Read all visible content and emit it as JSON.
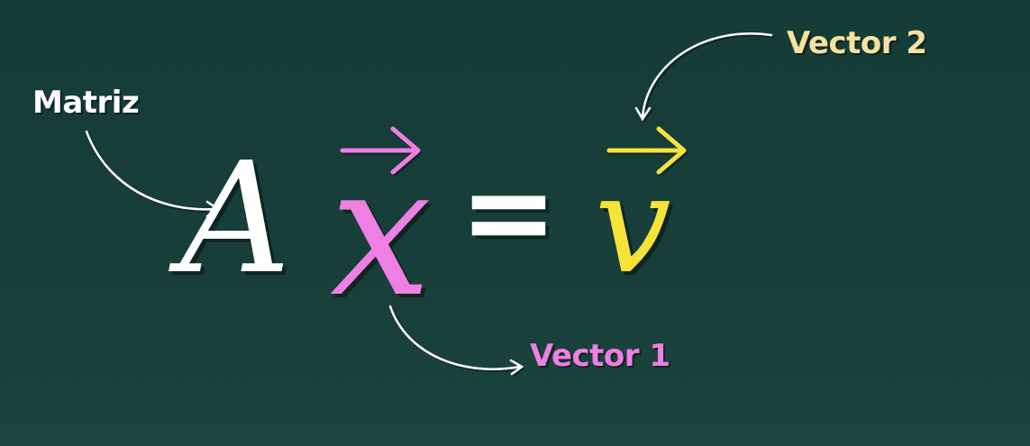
{
  "labels": {
    "matrix": "Matriz",
    "vector1": "Vector 1",
    "vector2": "Vector 2"
  },
  "equation": {
    "matrix_symbol": "A",
    "vector1_symbol": "x",
    "equals": "=",
    "vector2_symbol": "v"
  },
  "colors": {
    "background": "#173d39",
    "matrix": "#ffffff",
    "vector1": "#ee7fe3",
    "vector2": "#f5e33a",
    "vector2_label": "#f6e29f",
    "arrows": "#ffffff"
  }
}
